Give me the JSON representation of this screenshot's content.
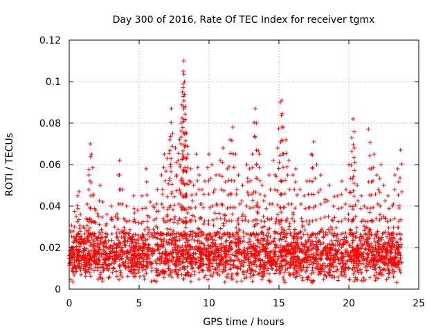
{
  "chart_data": {
    "type": "scatter",
    "title": "Day 300 of 2016, Rate Of TEC Index for receiver tgmx",
    "xlabel": "GPS time / hours",
    "ylabel": "ROTI / TECUs",
    "xlim": [
      0,
      25
    ],
    "ylim": [
      0,
      0.12
    ],
    "xticks": [
      0,
      5,
      10,
      15,
      20,
      25
    ],
    "xtick_labels": [
      "0",
      "5",
      "10",
      "15",
      "20",
      "25"
    ],
    "yticks": [
      0,
      0.02,
      0.04,
      0.06,
      0.08,
      0.1,
      0.12
    ],
    "ytick_labels": [
      "0",
      "0.02",
      "0.04",
      "0.06",
      "0.08",
      "0.1",
      "0.12"
    ],
    "grid": true,
    "marker": "plus",
    "color": "#ff0000",
    "series": [
      {
        "name": "ROTI",
        "points": [
          [
            0.1,
            0.012
          ],
          [
            0.2,
            0.02
          ],
          [
            0.3,
            0.028
          ],
          [
            0.5,
            0.035
          ],
          [
            0.6,
            0.045
          ],
          [
            0.7,
            0.047
          ],
          [
            0.8,
            0.036
          ],
          [
            1.0,
            0.03
          ],
          [
            1.2,
            0.034
          ],
          [
            1.4,
            0.055
          ],
          [
            1.5,
            0.07
          ],
          [
            1.6,
            0.065
          ],
          [
            1.7,
            0.045
          ],
          [
            1.9,
            0.038
          ],
          [
            2.2,
            0.05
          ],
          [
            2.4,
            0.042
          ],
          [
            2.7,
            0.036
          ],
          [
            3.0,
            0.04
          ],
          [
            3.3,
            0.035
          ],
          [
            3.5,
            0.055
          ],
          [
            3.6,
            0.062
          ],
          [
            3.8,
            0.048
          ],
          [
            4.1,
            0.04
          ],
          [
            4.3,
            0.033
          ],
          [
            4.6,
            0.045
          ],
          [
            4.9,
            0.038
          ],
          [
            5.2,
            0.045
          ],
          [
            5.5,
            0.058
          ],
          [
            5.8,
            0.042
          ],
          [
            6.0,
            0.04
          ],
          [
            6.3,
            0.048
          ],
          [
            6.6,
            0.055
          ],
          [
            6.8,
            0.065
          ],
          [
            7.0,
            0.063
          ],
          [
            7.2,
            0.072
          ],
          [
            7.3,
            0.087
          ],
          [
            7.4,
            0.075
          ],
          [
            7.6,
            0.068
          ],
          [
            7.8,
            0.062
          ],
          [
            7.9,
            0.072
          ],
          [
            8.0,
            0.08
          ],
          [
            8.1,
            0.095
          ],
          [
            8.15,
            0.105
          ],
          [
            8.2,
            0.11
          ],
          [
            8.25,
            0.1
          ],
          [
            8.3,
            0.088
          ],
          [
            8.4,
            0.075
          ],
          [
            8.5,
            0.065
          ],
          [
            8.7,
            0.058
          ],
          [
            8.9,
            0.05
          ],
          [
            9.1,
            0.065
          ],
          [
            9.3,
            0.055
          ],
          [
            9.5,
            0.048
          ],
          [
            9.7,
            0.052
          ],
          [
            10.0,
            0.065
          ],
          [
            10.2,
            0.06
          ],
          [
            10.5,
            0.055
          ],
          [
            10.8,
            0.062
          ],
          [
            11.0,
            0.068
          ],
          [
            11.3,
            0.058
          ],
          [
            11.5,
            0.072
          ],
          [
            11.7,
            0.078
          ],
          [
            11.9,
            0.065
          ],
          [
            12.1,
            0.055
          ],
          [
            12.4,
            0.05
          ],
          [
            12.7,
            0.06
          ],
          [
            12.9,
            0.058
          ],
          [
            13.1,
            0.065
          ],
          [
            13.3,
            0.087
          ],
          [
            13.4,
            0.08
          ],
          [
            13.6,
            0.065
          ],
          [
            13.8,
            0.05
          ],
          [
            14.0,
            0.045
          ],
          [
            14.3,
            0.055
          ],
          [
            14.6,
            0.062
          ],
          [
            14.9,
            0.068
          ],
          [
            15.1,
            0.09
          ],
          [
            15.2,
            0.091
          ],
          [
            15.3,
            0.078
          ],
          [
            15.5,
            0.072
          ],
          [
            15.7,
            0.062
          ],
          [
            16.0,
            0.055
          ],
          [
            16.2,
            0.058
          ],
          [
            16.5,
            0.048
          ],
          [
            16.8,
            0.045
          ],
          [
            17.0,
            0.052
          ],
          [
            17.3,
            0.065
          ],
          [
            17.5,
            0.071
          ],
          [
            17.7,
            0.06
          ],
          [
            18.0,
            0.055
          ],
          [
            18.3,
            0.042
          ],
          [
            18.6,
            0.05
          ],
          [
            18.9,
            0.04
          ],
          [
            19.2,
            0.045
          ],
          [
            19.5,
            0.052
          ],
          [
            19.8,
            0.048
          ],
          [
            20.0,
            0.06
          ],
          [
            20.2,
            0.073
          ],
          [
            20.3,
            0.082
          ],
          [
            20.4,
            0.068
          ],
          [
            20.6,
            0.05
          ],
          [
            20.9,
            0.045
          ],
          [
            21.1,
            0.04
          ],
          [
            21.4,
            0.077
          ],
          [
            21.6,
            0.058
          ],
          [
            21.8,
            0.065
          ],
          [
            22.0,
            0.055
          ],
          [
            22.3,
            0.06
          ],
          [
            22.5,
            0.05
          ],
          [
            22.8,
            0.045
          ],
          [
            23.1,
            0.04
          ],
          [
            23.3,
            0.055
          ],
          [
            23.5,
            0.058
          ],
          [
            23.7,
            0.067
          ]
        ]
      }
    ],
    "dense_band": {
      "description": "background cloud of points",
      "x_range": [
        0,
        23.8
      ],
      "y_min": 0.003,
      "y_center": 0.016,
      "y_spread": 0.012
    }
  }
}
